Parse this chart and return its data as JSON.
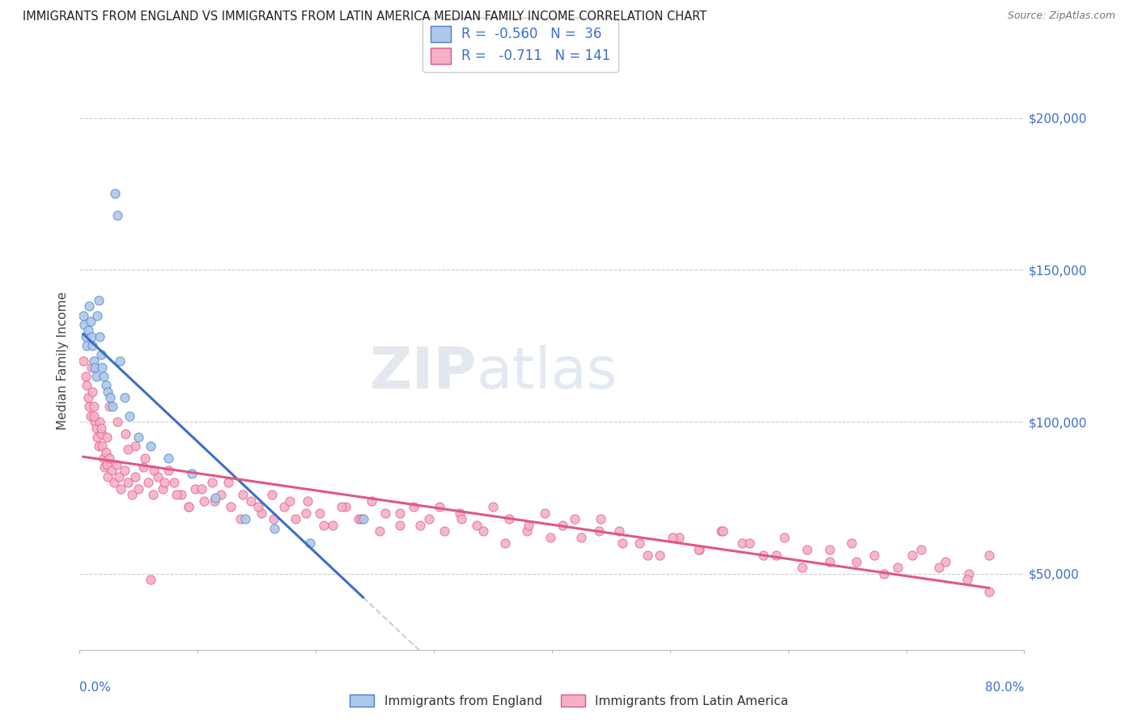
{
  "title": "IMMIGRANTS FROM ENGLAND VS IMMIGRANTS FROM LATIN AMERICA MEDIAN FAMILY INCOME CORRELATION CHART",
  "source": "Source: ZipAtlas.com",
  "ylabel": "Median Family Income",
  "xlim": [
    0.0,
    0.8
  ],
  "ylim": [
    25000,
    215000
  ],
  "yticks": [
    50000,
    100000,
    150000,
    200000
  ],
  "ytick_labels": [
    "$50,000",
    "$100,000",
    "$150,000",
    "$200,000"
  ],
  "watermark_zip": "ZIP",
  "watermark_atlas": "atlas",
  "england_R": -0.56,
  "england_N": 36,
  "latam_R": -0.711,
  "latam_N": 141,
  "england_color": "#adc8e8",
  "england_edge_color": "#4a7fcb",
  "latam_color": "#f5b0c8",
  "latam_edge_color": "#e05880",
  "england_line_color": "#3a6fcc",
  "latam_line_color": "#e05880",
  "background_color": "#ffffff",
  "england_x": [
    0.003,
    0.004,
    0.005,
    0.006,
    0.007,
    0.008,
    0.009,
    0.01,
    0.011,
    0.012,
    0.013,
    0.014,
    0.015,
    0.016,
    0.017,
    0.018,
    0.019,
    0.02,
    0.022,
    0.024,
    0.026,
    0.028,
    0.03,
    0.032,
    0.034,
    0.038,
    0.042,
    0.05,
    0.06,
    0.075,
    0.095,
    0.115,
    0.14,
    0.165,
    0.195,
    0.24
  ],
  "england_y": [
    135000,
    132000,
    128000,
    125000,
    130000,
    138000,
    133000,
    128000,
    125000,
    120000,
    118000,
    115000,
    135000,
    140000,
    128000,
    122000,
    118000,
    115000,
    112000,
    110000,
    108000,
    105000,
    175000,
    168000,
    120000,
    108000,
    102000,
    95000,
    92000,
    88000,
    83000,
    75000,
    68000,
    65000,
    60000,
    68000
  ],
  "latam_x": [
    0.003,
    0.005,
    0.006,
    0.007,
    0.008,
    0.009,
    0.01,
    0.011,
    0.012,
    0.013,
    0.014,
    0.015,
    0.016,
    0.017,
    0.018,
    0.019,
    0.02,
    0.021,
    0.022,
    0.023,
    0.024,
    0.025,
    0.027,
    0.029,
    0.031,
    0.033,
    0.035,
    0.038,
    0.041,
    0.044,
    0.047,
    0.05,
    0.054,
    0.058,
    0.062,
    0.066,
    0.07,
    0.075,
    0.08,
    0.086,
    0.092,
    0.098,
    0.105,
    0.112,
    0.12,
    0.128,
    0.136,
    0.145,
    0.154,
    0.163,
    0.173,
    0.183,
    0.193,
    0.203,
    0.214,
    0.225,
    0.236,
    0.247,
    0.259,
    0.271,
    0.283,
    0.296,
    0.309,
    0.322,
    0.336,
    0.35,
    0.364,
    0.379,
    0.394,
    0.409,
    0.425,
    0.441,
    0.457,
    0.474,
    0.491,
    0.508,
    0.525,
    0.543,
    0.561,
    0.579,
    0.597,
    0.616,
    0.635,
    0.654,
    0.673,
    0.693,
    0.713,
    0.733,
    0.753,
    0.77,
    0.012,
    0.018,
    0.025,
    0.032,
    0.039,
    0.047,
    0.055,
    0.063,
    0.072,
    0.082,
    0.092,
    0.103,
    0.114,
    0.126,
    0.138,
    0.151,
    0.164,
    0.178,
    0.192,
    0.207,
    0.222,
    0.238,
    0.254,
    0.271,
    0.288,
    0.305,
    0.323,
    0.342,
    0.36,
    0.38,
    0.399,
    0.419,
    0.44,
    0.46,
    0.481,
    0.502,
    0.524,
    0.545,
    0.567,
    0.59,
    0.612,
    0.635,
    0.658,
    0.681,
    0.705,
    0.728,
    0.752,
    0.77,
    0.023,
    0.041,
    0.06
  ],
  "latam_y": [
    120000,
    115000,
    112000,
    108000,
    105000,
    102000,
    118000,
    110000,
    105000,
    100000,
    98000,
    95000,
    92000,
    100000,
    96000,
    92000,
    88000,
    85000,
    90000,
    86000,
    82000,
    88000,
    84000,
    80000,
    86000,
    82000,
    78000,
    84000,
    80000,
    76000,
    82000,
    78000,
    85000,
    80000,
    76000,
    82000,
    78000,
    84000,
    80000,
    76000,
    72000,
    78000,
    74000,
    80000,
    76000,
    72000,
    68000,
    74000,
    70000,
    76000,
    72000,
    68000,
    74000,
    70000,
    66000,
    72000,
    68000,
    74000,
    70000,
    66000,
    72000,
    68000,
    64000,
    70000,
    66000,
    72000,
    68000,
    64000,
    70000,
    66000,
    62000,
    68000,
    64000,
    60000,
    56000,
    62000,
    58000,
    64000,
    60000,
    56000,
    62000,
    58000,
    54000,
    60000,
    56000,
    52000,
    58000,
    54000,
    50000,
    56000,
    102000,
    98000,
    105000,
    100000,
    96000,
    92000,
    88000,
    84000,
    80000,
    76000,
    72000,
    78000,
    74000,
    80000,
    76000,
    72000,
    68000,
    74000,
    70000,
    66000,
    72000,
    68000,
    64000,
    70000,
    66000,
    72000,
    68000,
    64000,
    60000,
    66000,
    62000,
    68000,
    64000,
    60000,
    56000,
    62000,
    58000,
    64000,
    60000,
    56000,
    52000,
    58000,
    54000,
    50000,
    56000,
    52000,
    48000,
    44000,
    95000,
    91000,
    48000
  ]
}
